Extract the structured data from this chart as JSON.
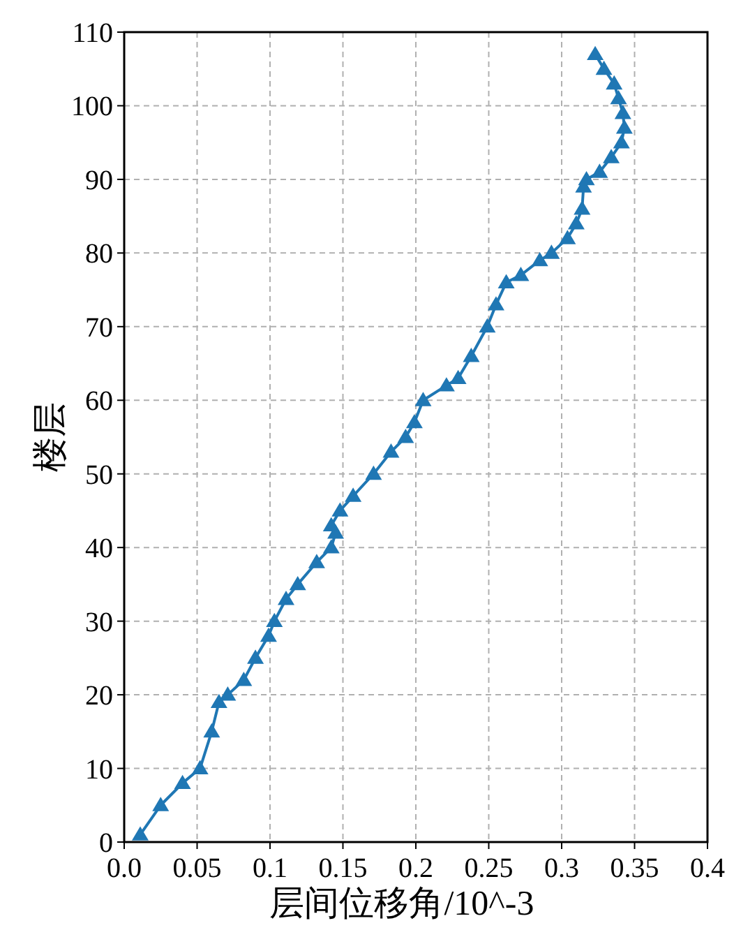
{
  "chart_data": {
    "type": "line",
    "xlabel": "层间位移角/10^-3",
    "ylabel": "楼层",
    "xlim": [
      0,
      0.4
    ],
    "ylim": [
      0,
      110
    ],
    "xticks": [
      {
        "value": 0,
        "label": "0.0"
      },
      0.05,
      0.1,
      0.15,
      0.2,
      0.25,
      0.3,
      0.35,
      0.4
    ],
    "yticks": [
      0,
      10,
      20,
      30,
      40,
      50,
      60,
      70,
      80,
      90,
      100,
      110
    ],
    "grid": true,
    "marker": "triangle",
    "series": [
      {
        "color": "#1f77b4",
        "x": [
          0.011,
          0.025,
          0.04,
          0.052,
          0.06,
          0.065,
          0.071,
          0.082,
          0.09,
          0.099,
          0.103,
          0.111,
          0.119,
          0.132,
          0.142,
          0.145,
          0.142,
          0.148,
          0.157,
          0.171,
          0.183,
          0.193,
          0.199,
          0.205,
          0.221,
          0.229,
          0.238,
          0.249,
          0.255,
          0.262,
          0.272,
          0.285,
          0.293,
          0.304,
          0.31,
          0.314,
          0.315,
          0.317,
          0.326,
          0.334,
          0.341,
          0.343,
          0.342,
          0.339,
          0.336,
          0.329,
          0.323
        ],
        "values": [
          1,
          5,
          8,
          10,
          15,
          19,
          20,
          22,
          25,
          28,
          30,
          33,
          35,
          38,
          40,
          42,
          43,
          45,
          47,
          50,
          53,
          55,
          57,
          60,
          62,
          63,
          66,
          70,
          73,
          76,
          77,
          79,
          80,
          82,
          84,
          86,
          89,
          90,
          91,
          93,
          95,
          97,
          99,
          101,
          103,
          105,
          107
        ]
      }
    ]
  }
}
